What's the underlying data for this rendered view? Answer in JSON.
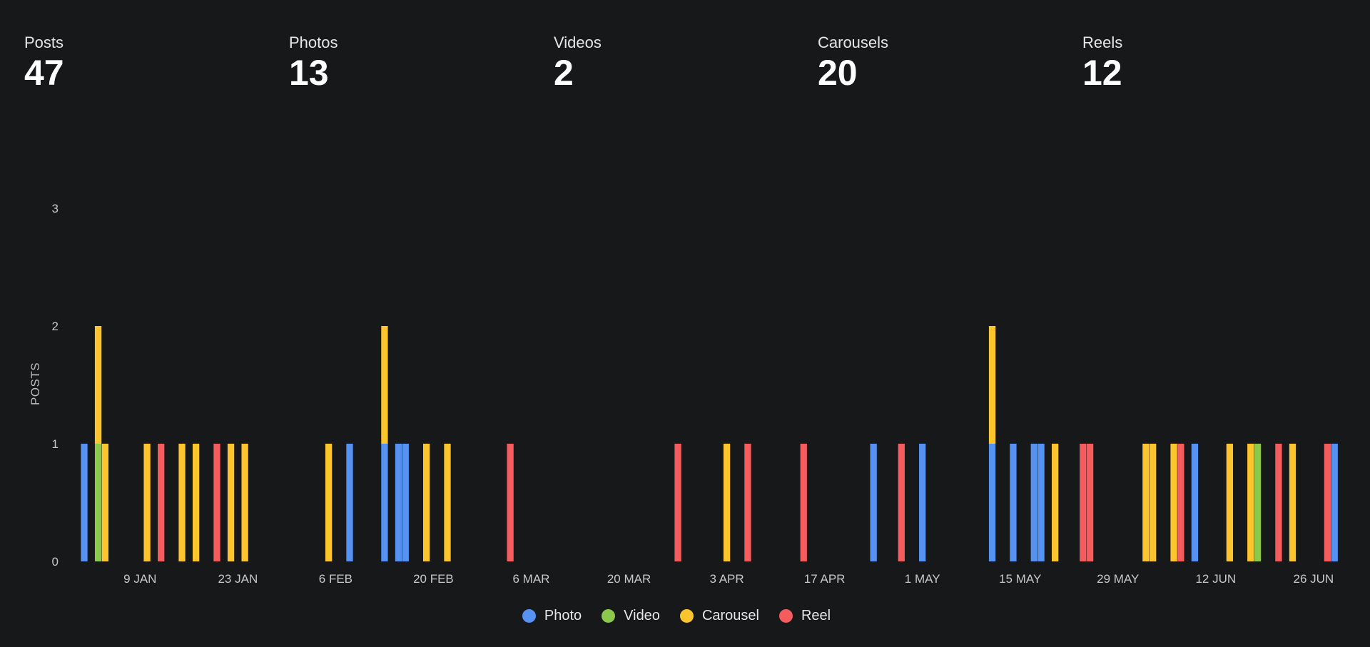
{
  "stats": [
    {
      "label": "Posts",
      "value": "47"
    },
    {
      "label": "Photos",
      "value": "13"
    },
    {
      "label": "Videos",
      "value": "2"
    },
    {
      "label": "Carousels",
      "value": "20"
    },
    {
      "label": "Reels",
      "value": "12"
    }
  ],
  "colors": {
    "Photo": "#5592f2",
    "Video": "#8cc84b",
    "Carousel": "#fcc42d",
    "Reel": "#f45c5e"
  },
  "chart_data": {
    "type": "bar",
    "stacked": true,
    "ylabel": "POSTS",
    "ylim": [
      0,
      3
    ],
    "yticks": [
      0,
      1,
      2,
      3
    ],
    "x_range": [
      "2023-01-01",
      "2023-06-30"
    ],
    "xticks": [
      {
        "date": "2023-01-09",
        "label": "9 JAN"
      },
      {
        "date": "2023-01-23",
        "label": "23 JAN"
      },
      {
        "date": "2023-02-06",
        "label": "6 FEB"
      },
      {
        "date": "2023-02-20",
        "label": "20 FEB"
      },
      {
        "date": "2023-03-06",
        "label": "6 MAR"
      },
      {
        "date": "2023-03-20",
        "label": "20 MAR"
      },
      {
        "date": "2023-04-03",
        "label": "3 APR"
      },
      {
        "date": "2023-04-17",
        "label": "17 APR"
      },
      {
        "date": "2023-05-01",
        "label": "1 MAY"
      },
      {
        "date": "2023-05-15",
        "label": "15 MAY"
      },
      {
        "date": "2023-05-29",
        "label": "29 MAY"
      },
      {
        "date": "2023-06-12",
        "label": "12 JUN"
      },
      {
        "date": "2023-06-26",
        "label": "26 JUN"
      }
    ],
    "series_names": [
      "Photo",
      "Video",
      "Carousel",
      "Reel"
    ],
    "legend_position": "bottom-center",
    "grid": false,
    "points": [
      {
        "date": "2023-01-01",
        "Photo": 1
      },
      {
        "date": "2023-01-03",
        "Video": 1,
        "Carousel": 1
      },
      {
        "date": "2023-01-04",
        "Carousel": 1
      },
      {
        "date": "2023-01-10",
        "Carousel": 1
      },
      {
        "date": "2023-01-12",
        "Reel": 1
      },
      {
        "date": "2023-01-15",
        "Carousel": 1
      },
      {
        "date": "2023-01-17",
        "Carousel": 1
      },
      {
        "date": "2023-01-20",
        "Reel": 1
      },
      {
        "date": "2023-01-22",
        "Carousel": 1
      },
      {
        "date": "2023-01-24",
        "Carousel": 1
      },
      {
        "date": "2023-02-05",
        "Carousel": 1
      },
      {
        "date": "2023-02-08",
        "Photo": 1
      },
      {
        "date": "2023-02-13",
        "Photo": 1,
        "Carousel": 1
      },
      {
        "date": "2023-02-15",
        "Photo": 1
      },
      {
        "date": "2023-02-16",
        "Photo": 1
      },
      {
        "date": "2023-02-19",
        "Carousel": 1
      },
      {
        "date": "2023-02-22",
        "Carousel": 1
      },
      {
        "date": "2023-03-03",
        "Reel": 1
      },
      {
        "date": "2023-03-27",
        "Reel": 1
      },
      {
        "date": "2023-04-03",
        "Carousel": 1
      },
      {
        "date": "2023-04-06",
        "Reel": 1
      },
      {
        "date": "2023-04-14",
        "Reel": 1
      },
      {
        "date": "2023-04-24",
        "Photo": 1
      },
      {
        "date": "2023-04-28",
        "Reel": 1
      },
      {
        "date": "2023-05-01",
        "Photo": 1
      },
      {
        "date": "2023-05-11",
        "Photo": 1,
        "Carousel": 1
      },
      {
        "date": "2023-05-14",
        "Photo": 1
      },
      {
        "date": "2023-05-17",
        "Photo": 1
      },
      {
        "date": "2023-05-18",
        "Photo": 1
      },
      {
        "date": "2023-05-20",
        "Carousel": 1
      },
      {
        "date": "2023-05-24",
        "Reel": 1
      },
      {
        "date": "2023-05-25",
        "Reel": 1
      },
      {
        "date": "2023-06-02",
        "Carousel": 1
      },
      {
        "date": "2023-06-03",
        "Carousel": 1
      },
      {
        "date": "2023-06-06",
        "Carousel": 1
      },
      {
        "date": "2023-06-07",
        "Reel": 1
      },
      {
        "date": "2023-06-09",
        "Photo": 1
      },
      {
        "date": "2023-06-14",
        "Carousel": 1
      },
      {
        "date": "2023-06-17",
        "Carousel": 1
      },
      {
        "date": "2023-06-18",
        "Video": 1
      },
      {
        "date": "2023-06-21",
        "Reel": 1
      },
      {
        "date": "2023-06-23",
        "Carousel": 1
      },
      {
        "date": "2023-06-28",
        "Reel": 1
      },
      {
        "date": "2023-06-29",
        "Photo": 1
      }
    ]
  }
}
